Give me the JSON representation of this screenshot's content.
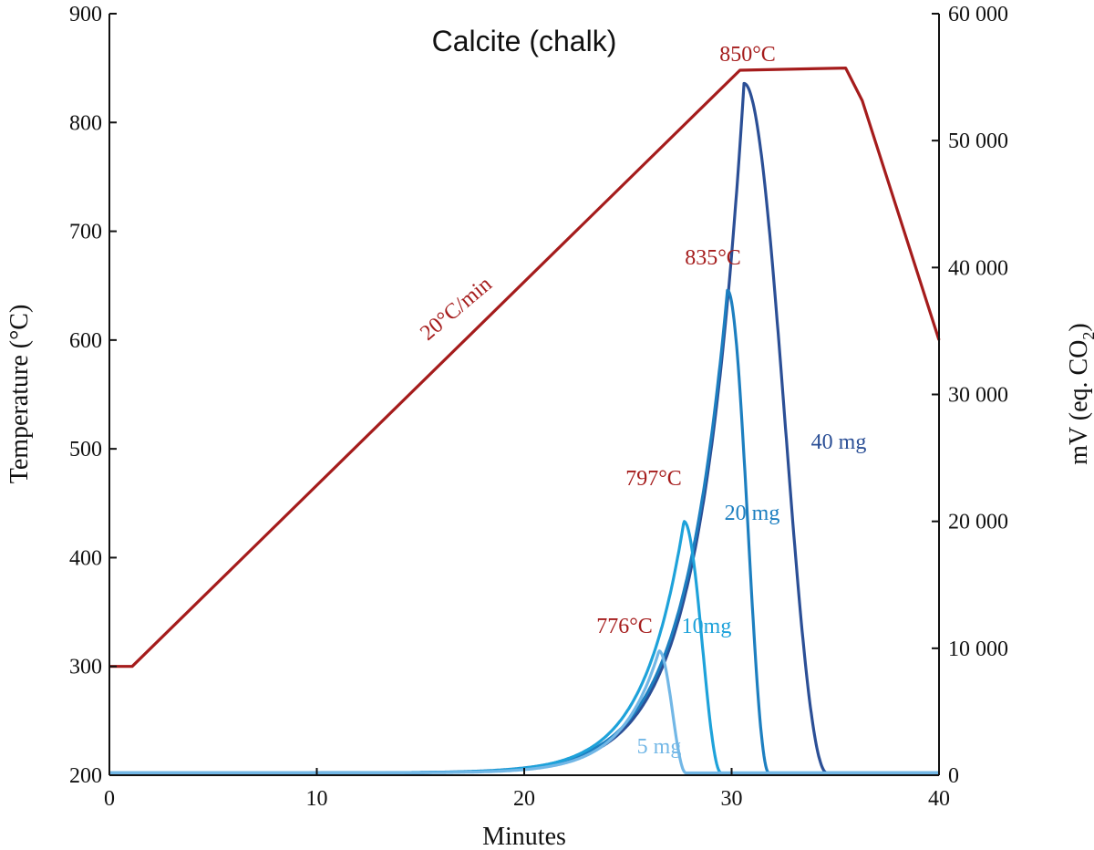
{
  "chart_data": {
    "type": "line",
    "title": "Calcite (chalk)",
    "xlabel": "Minutes",
    "ylabel_left": "Temperature (°C)",
    "ylabel_right": "mV (eq. CO",
    "ylabel_right_sub": "2",
    "ylabel_right_end": ")",
    "xlim": [
      0,
      40
    ],
    "ylim_left": [
      200,
      900
    ],
    "ylim_right": [
      0,
      60000
    ],
    "x_ticks": [
      0,
      10,
      20,
      30,
      40
    ],
    "y_left_ticks": [
      200,
      300,
      400,
      500,
      600,
      700,
      800,
      900
    ],
    "y_right_ticks": [
      0,
      10000,
      20000,
      30000,
      40000,
      50000,
      60000
    ],
    "y_right_tick_labels": [
      "0",
      "10 000",
      "20 000",
      "30 000",
      "40 000",
      "50 000",
      "60 000"
    ],
    "grid": false,
    "colors": {
      "temperature": "#a51c1c",
      "s40": "#2b4f96",
      "s20": "#1d7fc0",
      "s10": "#1ea2da",
      "s5": "#72b7e6"
    },
    "temperature_program": {
      "axis": "left",
      "points": [
        [
          0,
          300
        ],
        [
          1.1,
          300
        ],
        [
          30.4,
          848
        ],
        [
          35.5,
          850
        ],
        [
          36.3,
          820
        ],
        [
          40,
          600
        ]
      ]
    },
    "series": [
      {
        "key": "s5",
        "label": "5 mg",
        "peak_x": 26.5,
        "peak_y": 9800,
        "rise_width": 1.8,
        "end_x": 27.8
      },
      {
        "key": "s10",
        "label": "10mg",
        "peak_x": 27.7,
        "peak_y": 20000,
        "rise_width": 1.95,
        "end_x": 29.5
      },
      {
        "key": "s20",
        "label": "20 mg",
        "peak_x": 29.8,
        "peak_y": 38200,
        "rise_width": 2.15,
        "end_x": 31.8
      },
      {
        "key": "s40",
        "label": "40 mg",
        "peak_x": 30.6,
        "peak_y": 54500,
        "rise_width": 2.1,
        "end_x": 34.6
      }
    ],
    "annotations": {
      "rate": "20°C/min",
      "t850": "850°C",
      "t835": "835°C",
      "t797": "797°C",
      "t776": "776°C"
    }
  }
}
